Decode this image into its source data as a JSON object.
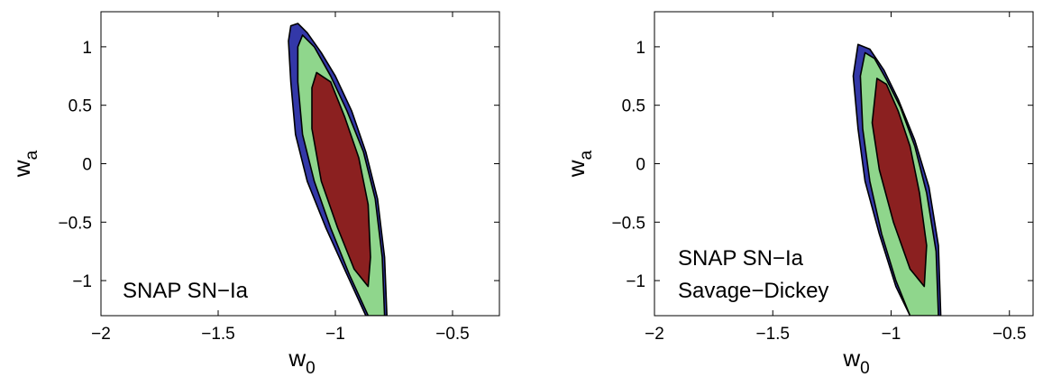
{
  "chart_data": [
    {
      "type": "contour",
      "title": "",
      "xlabel": {
        "base": "w",
        "sub": "0"
      },
      "ylabel": {
        "base": "w",
        "sub": "a"
      },
      "xlim": [
        -2.0,
        -0.3
      ],
      "ylim": [
        -1.3,
        1.3
      ],
      "xticks": [
        -2,
        -1.5,
        -1,
        -0.5
      ],
      "xtick_labels": [
        "−2",
        "−1.5",
        "−1",
        "−0.5"
      ],
      "yticks": [
        -1,
        -0.5,
        0,
        0.5,
        1
      ],
      "ytick_labels": [
        "−1",
        "−0.5",
        "0",
        "0.5",
        "1"
      ],
      "annotation": [
        "SNAP SN−Ia"
      ],
      "contours": [
        {
          "level": "outer",
          "color": "#3338a8",
          "points": [
            [
              -1.19,
              1.18
            ],
            [
              -1.16,
              1.2
            ],
            [
              -1.12,
              1.12
            ],
            [
              -1.06,
              0.95
            ],
            [
              -1.0,
              0.75
            ],
            [
              -0.93,
              0.45
            ],
            [
              -0.87,
              0.1
            ],
            [
              -0.82,
              -0.3
            ],
            [
              -0.79,
              -0.8
            ],
            [
              -0.78,
              -1.3
            ],
            [
              -0.87,
              -1.3
            ],
            [
              -0.95,
              -0.95
            ],
            [
              -1.04,
              -0.55
            ],
            [
              -1.12,
              -0.15
            ],
            [
              -1.17,
              0.25
            ],
            [
              -1.19,
              0.7
            ],
            [
              -1.2,
              1.05
            ]
          ]
        },
        {
          "level": "middle",
          "color": "#8fd68c",
          "points": [
            [
              -1.14,
              1.1
            ],
            [
              -1.09,
              1.0
            ],
            [
              -1.02,
              0.75
            ],
            [
              -0.95,
              0.45
            ],
            [
              -0.88,
              0.1
            ],
            [
              -0.83,
              -0.3
            ],
            [
              -0.8,
              -0.8
            ],
            [
              -0.79,
              -1.3
            ],
            [
              -0.86,
              -1.3
            ],
            [
              -0.94,
              -0.95
            ],
            [
              -1.02,
              -0.55
            ],
            [
              -1.09,
              -0.15
            ],
            [
              -1.14,
              0.25
            ],
            [
              -1.16,
              0.7
            ],
            [
              -1.16,
              1.0
            ]
          ]
        },
        {
          "level": "inner",
          "color": "#8b2020",
          "points": [
            [
              -1.08,
              0.78
            ],
            [
              -1.02,
              0.7
            ],
            [
              -0.96,
              0.4
            ],
            [
              -0.9,
              0.05
            ],
            [
              -0.86,
              -0.35
            ],
            [
              -0.85,
              -0.8
            ],
            [
              -0.86,
              -1.05
            ],
            [
              -0.92,
              -0.9
            ],
            [
              -0.99,
              -0.55
            ],
            [
              -1.06,
              -0.15
            ],
            [
              -1.1,
              0.3
            ],
            [
              -1.1,
              0.65
            ]
          ]
        }
      ]
    },
    {
      "type": "contour",
      "title": "",
      "xlabel": {
        "base": "w",
        "sub": "0"
      },
      "ylabel": {
        "base": "w",
        "sub": "a"
      },
      "xlim": [
        -2.0,
        -0.4
      ],
      "ylim": [
        -1.3,
        1.3
      ],
      "xticks": [
        -2,
        -1.5,
        -1,
        -0.5
      ],
      "xtick_labels": [
        "−2",
        "−1.5",
        "−1",
        "−0.5"
      ],
      "yticks": [
        -1,
        -0.5,
        0,
        0.5,
        1
      ],
      "ytick_labels": [
        "−1",
        "−0.5",
        "0",
        "0.5",
        "1"
      ],
      "annotation": [
        "SNAP SN−Ia",
        "Savage−Dickey"
      ],
      "contours": [
        {
          "level": "outer",
          "color": "#3338a8",
          "points": [
            [
              -1.14,
              1.02
            ],
            [
              -1.09,
              0.98
            ],
            [
              -1.03,
              0.8
            ],
            [
              -0.97,
              0.55
            ],
            [
              -0.9,
              0.2
            ],
            [
              -0.84,
              -0.2
            ],
            [
              -0.8,
              -0.7
            ],
            [
              -0.79,
              -1.3
            ],
            [
              -0.92,
              -1.3
            ],
            [
              -0.98,
              -1.05
            ],
            [
              -1.05,
              -0.6
            ],
            [
              -1.11,
              -0.15
            ],
            [
              -1.14,
              0.3
            ],
            [
              -1.16,
              0.75
            ]
          ]
        },
        {
          "level": "middle",
          "color": "#8fd68c",
          "points": [
            [
              -1.11,
              0.95
            ],
            [
              -1.07,
              0.9
            ],
            [
              -1.02,
              0.72
            ],
            [
              -0.96,
              0.48
            ],
            [
              -0.9,
              0.15
            ],
            [
              -0.85,
              -0.25
            ],
            [
              -0.81,
              -0.75
            ],
            [
              -0.8,
              -1.3
            ],
            [
              -0.92,
              -1.3
            ],
            [
              -0.98,
              -1.0
            ],
            [
              -1.04,
              -0.6
            ],
            [
              -1.09,
              -0.15
            ],
            [
              -1.12,
              0.3
            ],
            [
              -1.13,
              0.75
            ]
          ]
        },
        {
          "level": "inner",
          "color": "#8b2020",
          "points": [
            [
              -1.06,
              0.73
            ],
            [
              -1.02,
              0.68
            ],
            [
              -0.97,
              0.45
            ],
            [
              -0.92,
              0.15
            ],
            [
              -0.88,
              -0.25
            ],
            [
              -0.85,
              -0.7
            ],
            [
              -0.86,
              -1.05
            ],
            [
              -0.92,
              -0.9
            ],
            [
              -0.99,
              -0.5
            ],
            [
              -1.05,
              -0.05
            ],
            [
              -1.08,
              0.35
            ]
          ]
        }
      ]
    }
  ]
}
